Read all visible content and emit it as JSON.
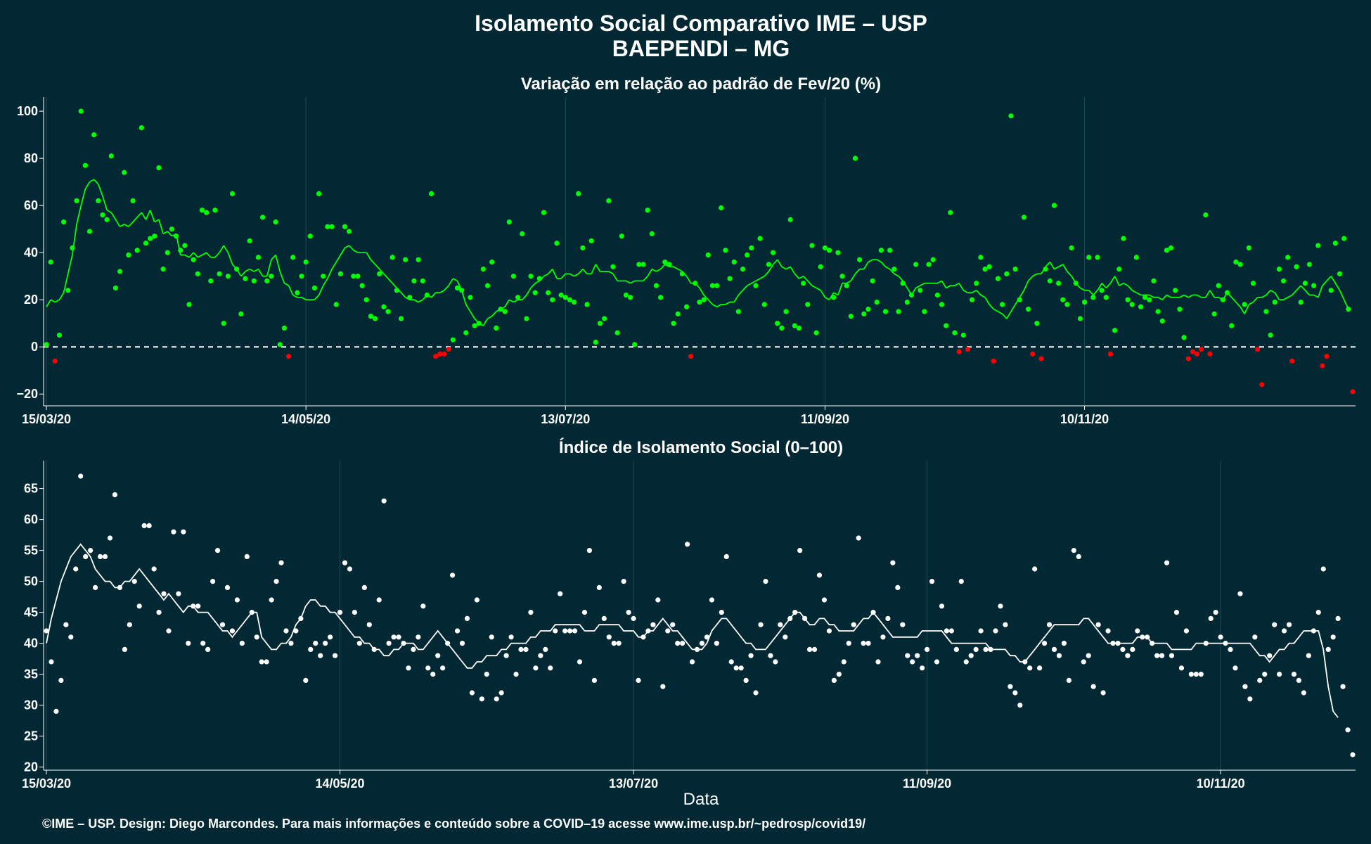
{
  "title": "Isolamento Social Comparativo IME – USP",
  "subtitle": "BAEPENDI – MG",
  "xlabel": "Data",
  "footer": "©IME – USP. Design: Diego Marcondes. Para mais informações e conteúdo sobre a COVID–19 acesse www.ime.usp.br/~pedrosp/covid19/",
  "colors": {
    "background": "#022833",
    "positive": "#00ff00",
    "negative": "#ff0000",
    "index": "#ffffff",
    "grid": "#1c4a55"
  },
  "chart_data": [
    {
      "type": "scatter",
      "title": "Variação em relação ao padrão de Fev/20 (%)",
      "x_start": "15/03/20",
      "xticks": [
        "15/03/20",
        "14/05/20",
        "13/07/20",
        "11/09/20",
        "10/11/20"
      ],
      "yticks": [
        -20,
        0,
        20,
        40,
        60,
        80,
        100
      ],
      "ylim": [
        -25,
        106
      ],
      "grid": true,
      "reference_line": 0,
      "series": [
        {
          "values": [
            1,
            36,
            -6,
            5,
            53,
            24,
            42,
            62,
            100,
            77,
            49,
            90,
            62,
            56,
            54,
            81,
            25,
            32,
            74,
            39,
            62,
            41,
            93,
            44,
            46,
            47,
            76,
            33,
            40,
            50,
            47,
            41,
            43,
            18,
            37,
            31,
            58,
            57,
            28,
            58,
            31,
            10,
            30,
            65,
            33,
            14,
            29,
            45,
            28,
            38,
            55,
            28,
            30,
            53,
            1,
            8,
            -4,
            38,
            23,
            30,
            36,
            47,
            25,
            65,
            30,
            51,
            51,
            18,
            31,
            51,
            49,
            30,
            30,
            26,
            20,
            13,
            12,
            31,
            17,
            15,
            38,
            24,
            12,
            37,
            21,
            28,
            37,
            28,
            22,
            65,
            -4,
            -3,
            -3,
            -1,
            3,
            25,
            24,
            6,
            21,
            9,
            10,
            33,
            26,
            36,
            8,
            16,
            15,
            53,
            30,
            21,
            48,
            12,
            30,
            23,
            29,
            57,
            23,
            20,
            44,
            22,
            21,
            20,
            19,
            65,
            42,
            18,
            45,
            2,
            10,
            12,
            62,
            34,
            6,
            47,
            22,
            21,
            1,
            35,
            35,
            58,
            48,
            26,
            21,
            36,
            35,
            10,
            14,
            31,
            17,
            -4,
            27,
            19,
            20,
            39,
            26,
            26,
            59,
            41,
            29,
            36,
            15,
            33,
            39,
            42,
            26,
            46,
            18,
            35,
            40,
            10,
            8,
            15,
            54,
            9,
            8,
            27,
            18,
            43,
            6,
            34,
            42,
            41,
            21,
            40,
            30,
            26,
            13,
            80,
            37,
            14,
            16,
            28,
            19,
            41,
            15,
            41,
            33,
            15,
            27,
            19,
            22,
            35,
            24,
            15,
            35,
            37,
            22,
            18,
            9,
            57,
            6,
            -2,
            5,
            -1,
            20,
            27,
            38,
            33,
            34,
            -6,
            29,
            18,
            31,
            98,
            33,
            20,
            55,
            16,
            -3,
            10,
            -5,
            33,
            28,
            60,
            27,
            20,
            18,
            42,
            27,
            12,
            19,
            38,
            21,
            38,
            24,
            21,
            -3,
            7,
            33,
            46,
            20,
            18,
            38,
            17,
            21,
            20,
            28,
            15,
            11,
            41,
            42,
            24,
            16,
            4,
            -5,
            -2,
            -3,
            -1,
            56,
            -3,
            14,
            26,
            20,
            23,
            9,
            36,
            35,
            18,
            42,
            27,
            -1,
            -16,
            15,
            5,
            19,
            33,
            28,
            38,
            -6,
            34,
            19,
            27,
            35,
            26,
            43,
            -8,
            -4,
            24,
            44,
            31,
            46,
            16,
            -19
          ]
        },
        {
          "values": [
            17,
            20,
            19,
            20,
            23,
            31,
            39,
            52,
            60,
            67,
            70,
            71,
            69,
            64,
            58,
            57,
            54,
            51,
            52,
            51,
            53,
            55,
            57,
            54,
            58,
            53,
            54,
            48,
            49,
            47,
            48,
            39,
            39,
            38,
            40,
            38,
            39,
            40,
            38,
            38,
            40,
            43,
            40,
            35,
            33,
            30,
            32,
            33,
            32,
            33,
            30,
            30,
            37,
            39,
            32,
            27,
            26,
            22,
            21,
            21,
            20,
            20,
            20,
            22,
            26,
            29,
            33,
            36,
            39,
            42,
            43,
            41,
            40,
            40,
            40,
            37,
            35,
            33,
            31,
            29,
            27,
            25,
            23,
            21,
            20,
            20,
            19,
            20,
            22,
            21,
            23,
            23,
            24,
            26,
            29,
            28,
            24,
            18,
            15,
            12,
            10,
            9,
            12,
            13,
            15,
            16,
            17,
            20,
            19,
            20,
            20,
            22,
            25,
            27,
            28,
            30,
            31,
            33,
            29,
            29,
            31,
            31,
            30,
            31,
            33,
            31,
            31,
            35,
            32,
            32,
            32,
            31,
            28,
            28,
            28,
            27,
            28,
            28,
            28,
            30,
            33,
            32,
            33,
            35,
            34,
            34,
            33,
            32,
            30,
            27,
            27,
            25,
            22,
            20,
            18,
            17,
            18,
            18,
            19,
            19,
            22,
            24,
            26,
            27,
            28,
            29,
            30,
            32,
            35,
            37,
            34,
            33,
            34,
            31,
            29,
            30,
            28,
            26,
            25,
            24,
            21,
            20,
            23,
            22,
            27,
            27,
            28,
            31,
            33,
            33,
            36,
            37,
            37,
            36,
            34,
            33,
            31,
            30,
            28,
            25,
            22,
            25,
            26,
            27,
            27,
            27,
            27,
            28,
            25,
            26,
            26,
            27,
            24,
            23,
            23,
            24,
            22,
            21,
            18,
            16,
            15,
            14,
            12,
            15,
            18,
            21,
            24,
            28,
            30,
            31,
            31,
            34,
            36,
            33,
            34,
            35,
            32,
            30,
            27,
            25,
            24,
            24,
            22,
            24,
            27,
            25,
            27,
            30,
            26,
            27,
            26,
            24,
            23,
            22,
            22,
            22,
            21,
            21,
            20,
            22,
            21,
            21,
            21,
            22,
            21,
            22,
            22,
            21,
            21,
            24,
            21,
            21,
            20,
            23,
            21,
            19,
            17,
            14,
            18,
            19,
            21,
            21,
            22,
            24,
            23,
            20,
            20,
            21,
            22,
            24,
            26,
            24,
            22,
            22,
            21,
            26,
            28,
            30,
            27,
            24,
            20,
            16
          ]
        }
      ]
    },
    {
      "type": "scatter",
      "title": "Índice de Isolamento Social (0–100)",
      "xlabel": "Data",
      "x_start": "15/03/20",
      "xticks": [
        "15/03/20",
        "14/05/20",
        "13/07/20",
        "11/09/20",
        "10/11/20"
      ],
      "yticks": [
        20,
        25,
        30,
        35,
        40,
        45,
        50,
        55,
        60,
        65
      ],
      "ylim": [
        19.5,
        69.5
      ],
      "grid": true,
      "series": [
        {
          "values": [
            42,
            37,
            29,
            34,
            43,
            41,
            52,
            67,
            54,
            55,
            49,
            54,
            54,
            57,
            64,
            49,
            39,
            43,
            50,
            46,
            59,
            59,
            52,
            45,
            48,
            42,
            58,
            48,
            58,
            40,
            46,
            46,
            40,
            39,
            50,
            55,
            43,
            49,
            42,
            47,
            40,
            54,
            45,
            41,
            37,
            37,
            47,
            50,
            53,
            42,
            40,
            42,
            44,
            34,
            39,
            40,
            38,
            40,
            41,
            38,
            45,
            53,
            52,
            45,
            40,
            49,
            43,
            39,
            47,
            63,
            40,
            41,
            41,
            40,
            36,
            39,
            41,
            46,
            36,
            35,
            38,
            36,
            40,
            51,
            42,
            40,
            44,
            32,
            47,
            31,
            35,
            41,
            31,
            32,
            38,
            41,
            35,
            39,
            39,
            45,
            36,
            38,
            39,
            36,
            42,
            48,
            42,
            42,
            42,
            37,
            45,
            55,
            34,
            49,
            44,
            41,
            40,
            40,
            50,
            45,
            44,
            34,
            41,
            42,
            43,
            47,
            33,
            42,
            43,
            40,
            40,
            56,
            37,
            39,
            40,
            41,
            47,
            40,
            45,
            54,
            37,
            36,
            36,
            34,
            38,
            32,
            43,
            50,
            38,
            37,
            43,
            41,
            44,
            45,
            55,
            44,
            39,
            39,
            51,
            47,
            42,
            34,
            35,
            37,
            40,
            43,
            57,
            40,
            40,
            45,
            37,
            41,
            44,
            53,
            49,
            43,
            38,
            37,
            38,
            36,
            39,
            50,
            37,
            46,
            42,
            42,
            39,
            50,
            37,
            38,
            39,
            42,
            39,
            39,
            42,
            46,
            43,
            33,
            32,
            30,
            37,
            36,
            52,
            36,
            40,
            43,
            39,
            38,
            40,
            34,
            55,
            54,
            37,
            38,
            33,
            43,
            32,
            42,
            40,
            40,
            39,
            38,
            39,
            42,
            41,
            41,
            40,
            38,
            38,
            53,
            38,
            45,
            36,
            42,
            35,
            35,
            35,
            40,
            44,
            45,
            41,
            40,
            39,
            36,
            48,
            33,
            31,
            41,
            34,
            35,
            38,
            43,
            35,
            42,
            43,
            35,
            34,
            32,
            38,
            42,
            45,
            52,
            39,
            41,
            44,
            33,
            26,
            22
          ]
        },
        {
          "values": [
            40,
            44,
            47,
            50,
            52,
            54,
            55,
            56,
            55,
            54,
            52,
            51,
            50,
            50,
            49,
            49,
            50,
            50,
            51,
            52,
            51,
            50,
            49,
            48,
            47,
            48,
            47,
            46,
            45,
            46,
            46,
            45,
            45,
            45,
            44,
            43,
            42,
            42,
            41,
            42,
            43,
            44,
            45,
            45,
            41,
            40,
            39,
            39,
            40,
            40,
            41,
            43,
            44,
            46,
            47,
            47,
            46,
            46,
            45,
            45,
            44,
            43,
            42,
            41,
            41,
            40,
            40,
            39,
            39,
            38,
            38,
            39,
            39,
            40,
            40,
            40,
            39,
            39,
            40,
            41,
            42,
            41,
            40,
            39,
            38,
            37,
            36,
            36,
            37,
            37,
            38,
            38,
            38,
            39,
            39,
            40,
            40,
            40,
            40,
            41,
            41,
            42,
            42,
            42,
            43,
            43,
            43,
            43,
            43,
            43,
            42,
            42,
            42,
            43,
            43,
            43,
            43,
            43,
            42,
            42,
            42,
            41,
            41,
            42,
            42,
            43,
            44,
            43,
            42,
            42,
            41,
            40,
            39,
            39,
            39,
            40,
            42,
            43,
            44,
            44,
            43,
            42,
            41,
            40,
            40,
            39,
            39,
            39,
            40,
            41,
            42,
            43,
            44,
            45,
            45,
            44,
            43,
            43,
            44,
            44,
            43,
            43,
            42,
            42,
            42,
            42,
            43,
            44,
            44,
            45,
            44,
            43,
            42,
            41,
            41,
            41,
            41,
            41,
            41,
            42,
            42,
            42,
            42,
            42,
            41,
            40,
            40,
            40,
            40,
            40,
            40,
            40,
            40,
            39,
            39,
            39,
            39,
            38,
            38,
            37,
            37,
            38,
            39,
            40,
            41,
            42,
            43,
            43,
            43,
            43,
            43,
            43,
            44,
            44,
            43,
            42,
            41,
            40,
            40,
            40,
            40,
            40,
            40,
            41,
            41,
            41,
            40,
            40,
            40,
            40,
            39,
            39,
            39,
            39,
            39,
            40,
            40,
            40,
            40,
            40,
            40,
            40,
            40,
            40,
            40,
            40,
            40,
            39,
            38,
            38,
            37,
            38,
            39,
            39,
            40,
            40,
            41,
            42,
            42,
            42,
            42,
            39,
            33,
            29,
            28
          ]
        }
      ]
    }
  ]
}
